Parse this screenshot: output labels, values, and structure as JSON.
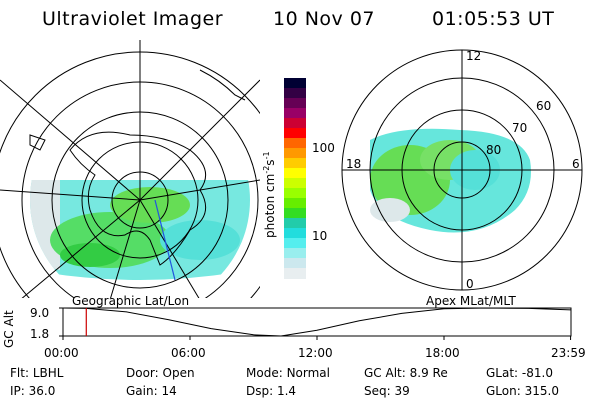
{
  "header": {
    "instrument": "Ultraviolet Imager",
    "date": "10 Nov 07",
    "time": "01:05:53 UT"
  },
  "colorbar": {
    "label": "photon cm",
    "label_sup1": "-2",
    "label_mid": "s",
    "label_sup2": "-1",
    "ticks": [
      "100",
      "10"
    ],
    "colors": [
      "#000033",
      "#330044",
      "#660055",
      "#990066",
      "#cc0033",
      "#ff0000",
      "#ff6600",
      "#ff9900",
      "#ffcc00",
      "#ffff00",
      "#ccff00",
      "#99ff00",
      "#66ee00",
      "#33dd22",
      "#22ccaa",
      "#22dddd",
      "#55eeee",
      "#99eeee",
      "#cce8ee",
      "#e8eef0"
    ]
  },
  "panels": {
    "left_title": "Geographic Lat/Lon",
    "right_title": "Apex MLat/MLT",
    "polar_labels": {
      "top": "12",
      "bottom": "0",
      "left": "18",
      "right": "6",
      "r60": "60",
      "r70": "70",
      "r80": "80"
    }
  },
  "timeline": {
    "ylabel": "GC Alt",
    "ytop": "9.0",
    "ybottom": "1.8",
    "xticks": [
      "00:00",
      "06:00",
      "12:00",
      "18:00",
      "23:59"
    ]
  },
  "chart_data": {
    "type": "line",
    "title": "GC Alt",
    "x_unit": "UT hours",
    "xlim": [
      0,
      24
    ],
    "ylim": [
      1.8,
      9.0
    ],
    "x": [
      0,
      1.1,
      3,
      5,
      7,
      9,
      10.3,
      12,
      14,
      16,
      18,
      20,
      22,
      23.98
    ],
    "y": [
      9.0,
      8.9,
      8.0,
      6.0,
      3.7,
      2.1,
      1.8,
      3.3,
      5.7,
      7.6,
      8.8,
      9.0,
      8.9,
      8.5
    ],
    "current_time_marker": 1.1
  },
  "footer": {
    "row1": [
      {
        "label": "Flt:",
        "value": "LBHL"
      },
      {
        "label": "Door:",
        "value": "Open"
      },
      {
        "label": "Mode:",
        "value": "Normal"
      },
      {
        "label": "GC Alt:",
        "value": "8.9 Re"
      },
      {
        "label": "GLat:",
        "value": "-81.0"
      }
    ],
    "row2": [
      {
        "label": "IP:",
        "value": "36.0"
      },
      {
        "label": "Gain:",
        "value": "14"
      },
      {
        "label": "Dsp:",
        "value": "1.4"
      },
      {
        "label": "Seq:",
        "value": "39"
      },
      {
        "label": "GLon:",
        "value": "315.0"
      }
    ]
  },
  "colors": {
    "marker": "#cc0000",
    "meridian": "#2255dd"
  }
}
